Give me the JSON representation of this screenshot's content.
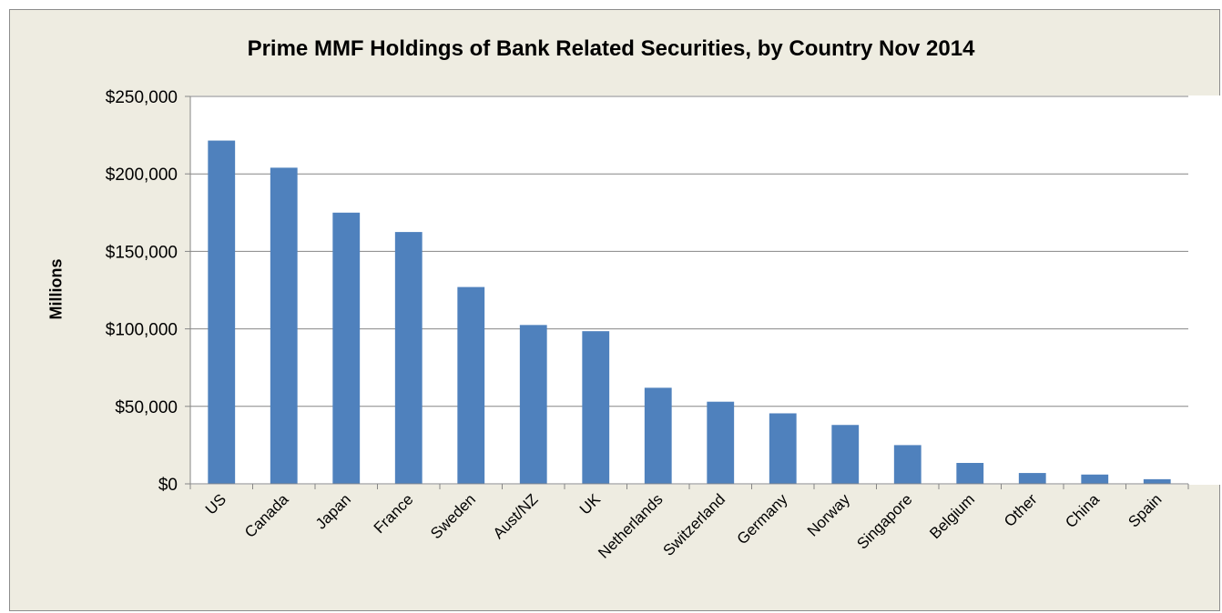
{
  "chart_data": {
    "type": "bar",
    "title": "Prime MMF Holdings of Bank Related Securities, by Country Nov 2014",
    "xlabel": "",
    "ylabel": "Millions",
    "categories": [
      "US",
      "Canada",
      "Japan",
      "France",
      "Sweden",
      "Aust/NZ",
      "UK",
      "Netherlands",
      "Switzerland",
      "Germany",
      "Norway",
      "Singapore",
      "Belgium",
      "Other",
      "China",
      "Spain"
    ],
    "values": [
      221500,
      204000,
      175000,
      162500,
      127000,
      102500,
      98500,
      62000,
      53000,
      45500,
      38000,
      25000,
      13500,
      7000,
      6000,
      3000
    ],
    "ylim": [
      0,
      250000
    ],
    "y_ticks": [
      0,
      50000,
      100000,
      150000,
      200000,
      250000
    ],
    "y_tick_labels": [
      "$0",
      "$50,000",
      "$100,000",
      "$150,000",
      "$200,000",
      "$250,000"
    ],
    "bar_color": "#4f81bd",
    "grid": true,
    "legend": "none"
  }
}
